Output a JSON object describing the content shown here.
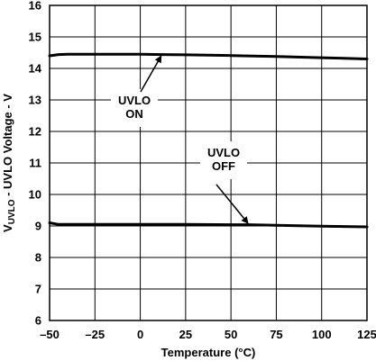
{
  "chart_data": {
    "type": "line",
    "xlabel": "Temperature (°C)",
    "ylabel": {
      "prefix": "V",
      "subscript": "UVLO",
      "suffix": " - UVLO Voltage - V"
    },
    "xlim": [
      -50,
      125
    ],
    "ylim": [
      6,
      16
    ],
    "xticks": [
      -50,
      -25,
      0,
      25,
      50,
      75,
      100,
      125
    ],
    "yticks": [
      6,
      7,
      8,
      9,
      10,
      11,
      12,
      13,
      14,
      15,
      16
    ],
    "grid": true,
    "series": [
      {
        "x": [
          -50,
          -45,
          -40,
          -25,
          0,
          12,
          25,
          50,
          75,
          100,
          125
        ],
        "y": [
          14.4,
          14.44,
          14.45,
          14.45,
          14.45,
          14.44,
          14.43,
          14.41,
          14.38,
          14.34,
          14.3
        ]
      },
      {
        "x": [
          -50,
          -45,
          -40,
          -25,
          0,
          25,
          50,
          60,
          75,
          100,
          125
        ],
        "y": [
          9.1,
          9.05,
          9.05,
          9.05,
          9.05,
          9.05,
          9.04,
          9.04,
          9.02,
          8.99,
          8.97
        ]
      }
    ],
    "annotations": [
      {
        "lines": [
          "UVLO",
          "ON"
        ],
        "point_x": 12,
        "point_y": 14.44
      },
      {
        "lines": [
          "UVLO",
          "OFF"
        ],
        "point_x": 60,
        "point_y": 9.04
      }
    ],
    "colors": {
      "line": "#000000",
      "grid": "#000000",
      "background": "#ffffff"
    }
  }
}
